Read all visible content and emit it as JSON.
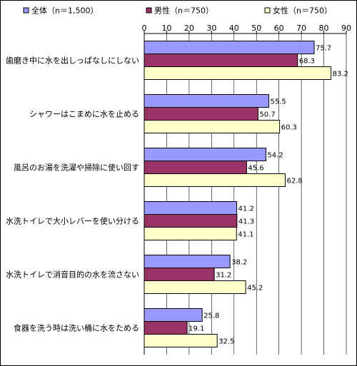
{
  "chart_data": {
    "type": "bar",
    "orientation": "horizontal",
    "title": "",
    "xlabel": "",
    "ylabel": "",
    "xlim": [
      0,
      90
    ],
    "ticks": [
      "0",
      "10",
      "20",
      "30",
      "40",
      "50",
      "60",
      "70",
      "80",
      "90"
    ],
    "grid": true,
    "legend_position": "top",
    "categories": [
      "歯磨き中に水を出しっぱなしにしない",
      "シャワーはこまめに水を止める",
      "風呂のお湯を洗濯や掃除に使い回す",
      "水洗トイレで大小レバーを使い分ける",
      "水洗トイレで消音目的の水を流さない",
      "食器を洗う時は洗い桶に水をためる"
    ],
    "series": [
      {
        "name": "全体（n＝1,500）",
        "color": "#9999ff",
        "values": [
          75.7,
          55.5,
          54.2,
          41.2,
          38.2,
          25.8
        ]
      },
      {
        "name": "男性（n＝750）",
        "color": "#993366",
        "values": [
          68.3,
          50.7,
          45.6,
          41.3,
          31.2,
          19.1
        ]
      },
      {
        "name": "女性（n＝750）",
        "color": "#ffffcc",
        "values": [
          83.2,
          60.3,
          62.8,
          41.1,
          45.2,
          32.5
        ]
      }
    ]
  }
}
